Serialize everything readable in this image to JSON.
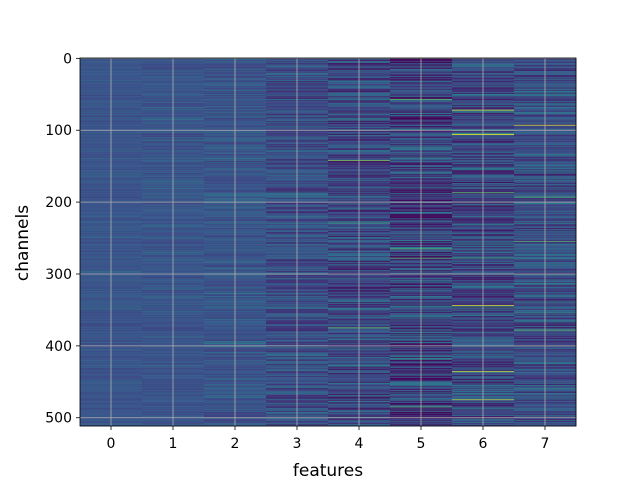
{
  "chart_data": {
    "type": "heatmap",
    "title": "",
    "xlabel": "features",
    "ylabel": "channels",
    "x_ticks": [
      0,
      1,
      2,
      3,
      4,
      5,
      6,
      7
    ],
    "y_ticks": [
      0,
      100,
      200,
      300,
      400,
      500
    ],
    "xlim": [
      -0.5,
      7.5
    ],
    "ylim": [
      511.5,
      -0.5
    ],
    "n_rows": 512,
    "n_cols": 8,
    "grid": true,
    "colormap": "viridis",
    "colormap_stops": [
      "#440154",
      "#3b528b",
      "#21918c",
      "#5ec962",
      "#fde725"
    ],
    "column_stats": [
      {
        "feature": 0,
        "base": 0.26,
        "spread": 0.04
      },
      {
        "feature": 1,
        "base": 0.26,
        "spread": 0.05
      },
      {
        "feature": 2,
        "base": 0.26,
        "spread": 0.07
      },
      {
        "feature": 3,
        "base": 0.24,
        "spread": 0.12
      },
      {
        "feature": 4,
        "base": 0.22,
        "spread": 0.16
      },
      {
        "feature": 5,
        "base": 0.2,
        "spread": 0.2
      },
      {
        "feature": 6,
        "base": 0.22,
        "spread": 0.17
      },
      {
        "feature": 7,
        "base": 0.24,
        "spread": 0.15
      }
    ],
    "highlights": [
      {
        "feature": 4,
        "channel": 142,
        "value": 0.8
      },
      {
        "feature": 4,
        "channel": 375,
        "value": 0.75
      },
      {
        "feature": 5,
        "channel": 265,
        "value": 0.7
      },
      {
        "feature": 5,
        "channel": 278,
        "value": 0.7
      },
      {
        "feature": 5,
        "channel": 57,
        "value": 0.75
      },
      {
        "feature": 6,
        "channel": 72,
        "value": 0.95
      },
      {
        "feature": 6,
        "channel": 106,
        "value": 1.0
      },
      {
        "feature": 6,
        "channel": 344,
        "value": 0.95
      },
      {
        "feature": 6,
        "channel": 436,
        "value": 0.95
      },
      {
        "feature": 6,
        "channel": 475,
        "value": 0.9
      },
      {
        "feature": 6,
        "channel": 187,
        "value": 0.75
      },
      {
        "feature": 7,
        "channel": 93,
        "value": 0.95
      },
      {
        "feature": 7,
        "channel": 255,
        "value": 0.7
      },
      {
        "feature": 7,
        "channel": 193,
        "value": 0.7
      },
      {
        "feature": 7,
        "channel": 378,
        "value": 0.75
      }
    ]
  }
}
